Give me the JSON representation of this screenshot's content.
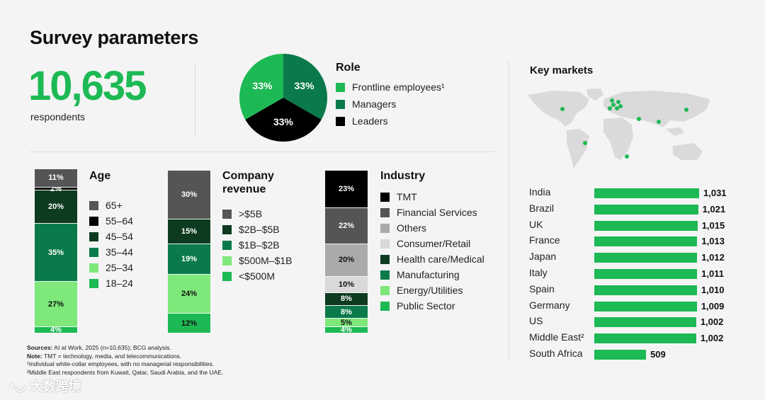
{
  "title": "Survey parameters",
  "respondents": {
    "value": "10,635",
    "label": "respondents"
  },
  "colors": {
    "green": "#1db954",
    "dark_green": "#0a7a4a",
    "darkest_green": "#0d3b1f",
    "light_green": "#7ee87a",
    "black": "#000000",
    "dark_gray": "#555555",
    "mid_gray": "#aaaaaa",
    "light_gray": "#d9d9d9"
  },
  "role": {
    "title": "Role",
    "legend": [
      "Frontline employees¹",
      "Managers",
      "Leaders"
    ]
  },
  "age": {
    "title": "Age",
    "legend": [
      "65+",
      "55–64",
      "45–54",
      "35–44",
      "25–34",
      "18–24"
    ]
  },
  "revenue": {
    "title_line1": "Company",
    "title_line2": "revenue",
    "legend": [
      ">$5B",
      "$2B–$5B",
      "$1B–$2B",
      "$500M–$1B",
      "<$500M"
    ]
  },
  "industry": {
    "title": "Industry",
    "legend": [
      "TMT",
      "Financial Services",
      "Others",
      "Consumer/Retail",
      "Health care/Medical",
      "Manufacturing",
      "Energy/Utilities",
      "Public Sector"
    ]
  },
  "markets": {
    "title": "Key markets"
  },
  "chart_data": [
    {
      "type": "pie",
      "title": "Role",
      "categories": [
        "Frontline employees¹",
        "Managers",
        "Leaders"
      ],
      "values": [
        33,
        33,
        33
      ],
      "labels": [
        "33%",
        "33%",
        "33%"
      ],
      "colors": [
        "#1db954",
        "#0a7a4a",
        "#000000"
      ]
    },
    {
      "type": "bar",
      "stacked": true,
      "title": "Age",
      "categories": [
        "18–24",
        "25–34",
        "35–44",
        "45–54",
        "55–64",
        "65+"
      ],
      "values": [
        4,
        27,
        35,
        20,
        2,
        11
      ],
      "labels": [
        "4%",
        "27%",
        "35%",
        "20%",
        "2%",
        "11%"
      ],
      "colors": [
        "#1db954",
        "#7ee87a",
        "#0a7a4a",
        "#0d3b1f",
        "#000000",
        "#555555"
      ],
      "text_colors": [
        "#ffffff",
        "#111111",
        "#ffffff",
        "#ffffff",
        "#ffffff",
        "#ffffff"
      ]
    },
    {
      "type": "bar",
      "stacked": true,
      "title": "Company revenue",
      "categories": [
        "<$500M",
        "$500M–$1B",
        "$1B–$2B",
        "$2B–$5B",
        ">$5B"
      ],
      "values": [
        12,
        24,
        19,
        15,
        30
      ],
      "labels": [
        "12%",
        "24%",
        "19%",
        "15%",
        "30%"
      ],
      "colors": [
        "#1db954",
        "#7ee87a",
        "#0a7a4a",
        "#0d3b1f",
        "#555555"
      ],
      "text_colors": [
        "#111111",
        "#111111",
        "#ffffff",
        "#ffffff",
        "#ffffff"
      ]
    },
    {
      "type": "bar",
      "stacked": true,
      "title": "Industry",
      "categories": [
        "Public Sector",
        "Energy/Utilities",
        "Manufacturing",
        "Health care/Medical",
        "Consumer/Retail",
        "Others",
        "Financial Services",
        "TMT"
      ],
      "values": [
        4,
        5,
        8,
        8,
        10,
        20,
        22,
        23
      ],
      "labels": [
        "4%",
        "5%",
        "8%",
        "8%",
        "10%",
        "20%",
        "22%",
        "23%"
      ],
      "colors": [
        "#1db954",
        "#7ee87a",
        "#0a7a4a",
        "#0d3b1f",
        "#d9d9d9",
        "#aaaaaa",
        "#555555",
        "#000000"
      ],
      "text_colors": [
        "#ffffff",
        "#111111",
        "#ffffff",
        "#ffffff",
        "#111111",
        "#111111",
        "#ffffff",
        "#ffffff"
      ]
    },
    {
      "type": "bar",
      "orientation": "horizontal",
      "title": "Key markets",
      "categories": [
        "India",
        "Brazil",
        "UK",
        "France",
        "Japan",
        "Italy",
        "Spain",
        "Germany",
        "US",
        "Middle East²",
        "South Africa"
      ],
      "values": [
        1031,
        1021,
        1015,
        1013,
        1012,
        1011,
        1010,
        1009,
        1002,
        1002,
        509
      ],
      "labels": [
        "1,031",
        "1,021",
        "1,015",
        "1,013",
        "1,012",
        "1,011",
        "1,010",
        "1,009",
        "1,002",
        "1,002",
        "509"
      ],
      "xlim": [
        0,
        1031
      ]
    }
  ],
  "notes": {
    "sources_label": "Sources:",
    "sources": "AI at Work, 2025 (n=10,635); BCG analysis.",
    "note_label": "Note:",
    "note": "TMT = technology, media, and telecommunications.",
    "fn1": "¹Individual white-collar employees, with no managerial responsibilities.",
    "fn2": "²Middle East respondents from Kuwait, Qatar, Saudi Arabia, and the UAE."
  },
  "watermark": "大数跨境"
}
